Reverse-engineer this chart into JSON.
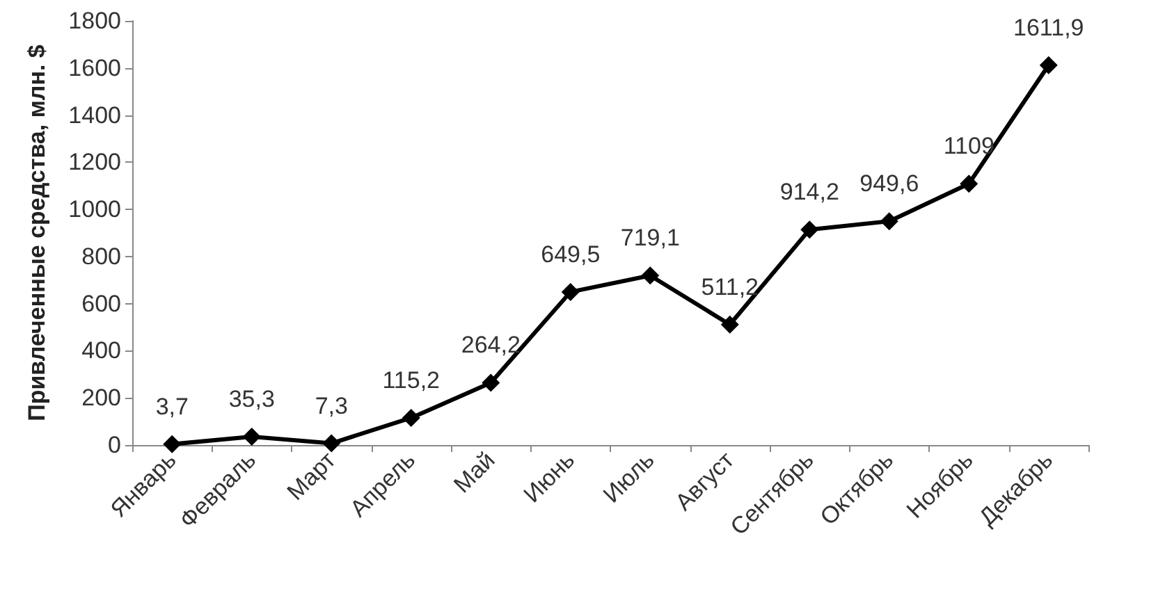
{
  "chart_data": {
    "type": "line",
    "ylabel": "Привлеченные средства, млн. $",
    "categories": [
      "Январь",
      "Февраль",
      "Март",
      "Апрель",
      "Май",
      "Июнь",
      "Июль",
      "Август",
      "Сентябрь",
      "Октябрь",
      "Ноябрь",
      "Декабрь"
    ],
    "series": [
      {
        "color": "#000000",
        "values": [
          3.7,
          35.3,
          7.3,
          115.2,
          264.2,
          649.5,
          719.1,
          511.2,
          914.2,
          949.6,
          1109,
          1611.9
        ],
        "value_labels": [
          "3,7",
          "35,3",
          "7,3",
          "115,2",
          "264,2",
          "649,5",
          "719,1",
          "511,2",
          "914,2",
          "949,6",
          "1109",
          "1611,9"
        ]
      }
    ],
    "ylim": [
      0,
      1800
    ],
    "yticks": [
      0,
      200,
      400,
      600,
      800,
      1000,
      1200,
      1400,
      1600,
      1800
    ],
    "grid": false,
    "marker": "diamond",
    "line_style": "solid"
  }
}
